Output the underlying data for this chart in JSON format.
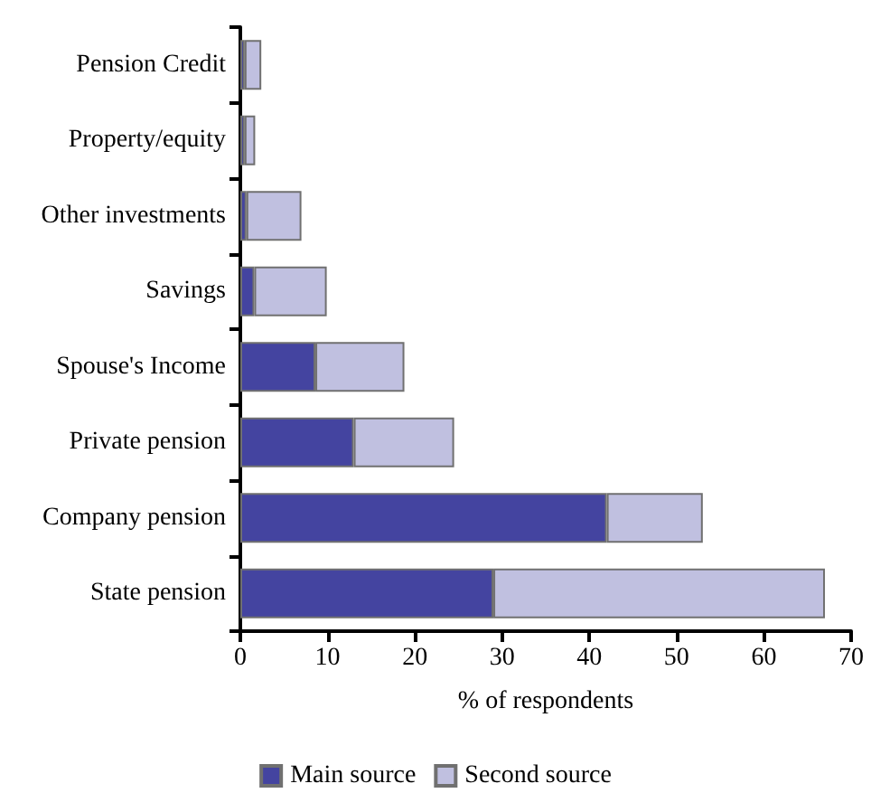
{
  "chart_data": {
    "type": "bar",
    "orientation": "horizontal",
    "stacked": true,
    "categories": [
      "Pension Credit",
      "Property/equity",
      "Other investments",
      "Savings",
      "Spouse's Income",
      "Private pension",
      "Company pension",
      "State pension"
    ],
    "series": [
      {
        "name": "Main source",
        "color": "#4444a0",
        "values": [
          0.5,
          0.5,
          0.7,
          1.6,
          8.6,
          13,
          42,
          29
        ]
      },
      {
        "name": "Second source",
        "color": "#c0c0e0",
        "values": [
          1.9,
          1.2,
          6.3,
          8.3,
          10.2,
          11.5,
          11,
          38
        ]
      }
    ],
    "xlabel": "% of respondents",
    "xlim": [
      0,
      70
    ],
    "xticks": [
      0,
      10,
      20,
      30,
      40,
      50,
      60,
      70
    ],
    "grid": false,
    "legend": "bottom"
  }
}
